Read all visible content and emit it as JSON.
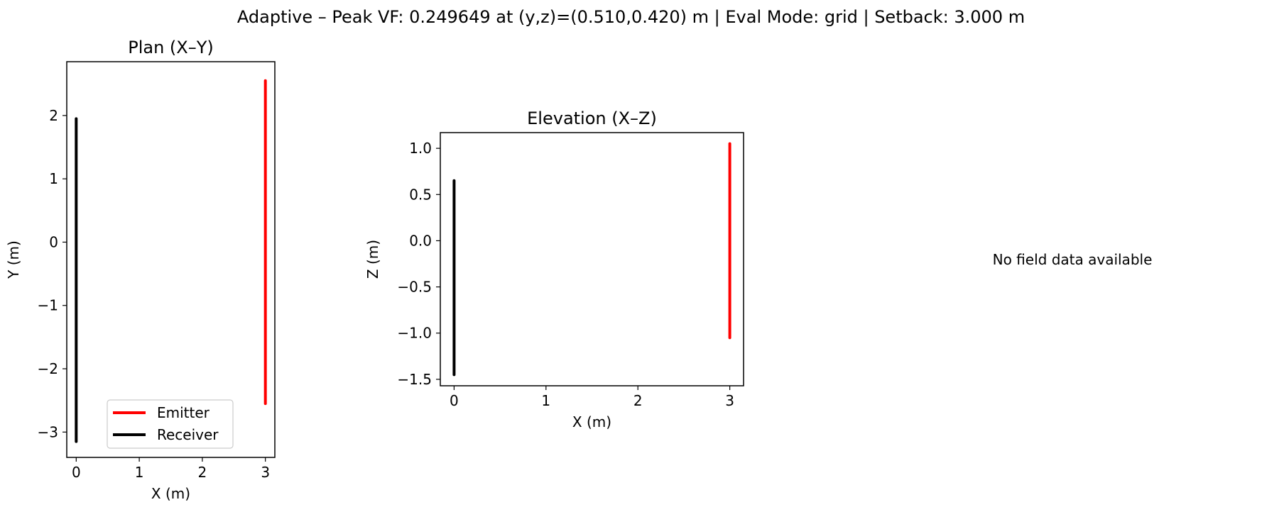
{
  "figure_title": "Adaptive – Peak VF: 0.249649 at (y,z)=(0.510,0.420) m | Eval Mode: grid | Setback: 3.000 m",
  "field_panel": {
    "message": "No field data available"
  },
  "colors": {
    "emitter": "#ff0000",
    "receiver": "#000000"
  },
  "chart_data": [
    {
      "type": "line",
      "title": "Plan (X–Y)",
      "xlabel": "X (m)",
      "ylabel": "Y (m)",
      "xlim": [
        -0.15,
        3.15
      ],
      "ylim": [
        -3.4,
        2.85
      ],
      "xticks": [
        0,
        1,
        2,
        3
      ],
      "xtick_labels": [
        "0",
        "1",
        "2",
        "3"
      ],
      "yticks": [
        -3,
        -2,
        -1,
        0,
        1,
        2
      ],
      "ytick_labels": [
        "−3",
        "−2",
        "−1",
        "0",
        "1",
        "2"
      ],
      "grid": false,
      "legend": "lower-center",
      "series": [
        {
          "name": "Emitter",
          "color": "#ff0000",
          "x": [
            3,
            3
          ],
          "y": [
            -2.55,
            2.55
          ]
        },
        {
          "name": "Receiver",
          "color": "#000000",
          "x": [
            0,
            0
          ],
          "y": [
            -3.15,
            1.95
          ]
        }
      ]
    },
    {
      "type": "line",
      "title": "Elevation (X–Z)",
      "xlabel": "X (m)",
      "ylabel": "Z (m)",
      "xlim": [
        -0.15,
        3.15
      ],
      "ylim": [
        -1.57,
        1.17
      ],
      "xticks": [
        0,
        1,
        2,
        3
      ],
      "xtick_labels": [
        "0",
        "1",
        "2",
        "3"
      ],
      "yticks": [
        -1.5,
        -1.0,
        -0.5,
        0.0,
        0.5,
        1.0
      ],
      "ytick_labels": [
        "−1.5",
        "−1.0",
        "−0.5",
        "0.0",
        "0.5",
        "1.0"
      ],
      "grid": false,
      "series": [
        {
          "color": "#ff0000",
          "x": [
            3,
            3
          ],
          "y": [
            -1.05,
            1.05
          ]
        },
        {
          "color": "#000000",
          "x": [
            0,
            0
          ],
          "y": [
            -1.45,
            0.65
          ]
        }
      ]
    }
  ]
}
